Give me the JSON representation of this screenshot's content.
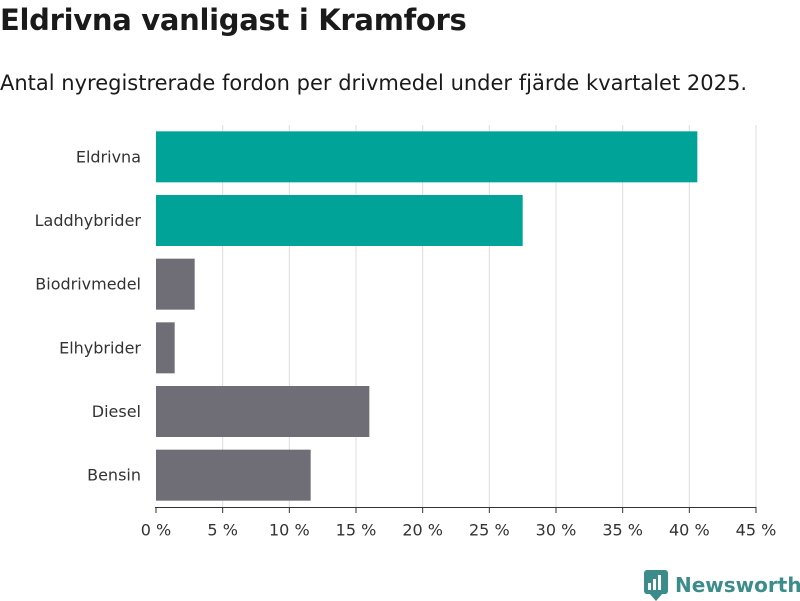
{
  "header": {
    "title": "Eldrivna vanligast i Kramfors",
    "subtitle": "Antal nyregistrerade fordon per drivmedel under fjärde kvartalet 2025."
  },
  "chart_data": {
    "type": "bar",
    "orientation": "horizontal",
    "categories": [
      "Eldrivna",
      "Laddhybrider",
      "Biodrivmedel",
      "Elhybrider",
      "Diesel",
      "Bensin"
    ],
    "values": [
      40.6,
      27.5,
      2.9,
      1.4,
      16.0,
      11.6
    ],
    "unit": "%",
    "highlighted": [
      "Eldrivna",
      "Laddhybrider"
    ],
    "xlim": [
      0,
      45
    ],
    "xticks": [
      0,
      5,
      10,
      15,
      20,
      25,
      30,
      35,
      40,
      45
    ],
    "xtick_labels": [
      "0 %",
      "5 %",
      "10 %",
      "15 %",
      "20 %",
      "25 %",
      "30 %",
      "35 %",
      "40 %",
      "45 %"
    ],
    "xlabel": "",
    "ylabel": "",
    "grid": true,
    "colors": {
      "highlight": "#00a398",
      "default": "#6f6e76",
      "grid": "#dcdcdc",
      "axis": "#333333"
    }
  },
  "branding": {
    "name": "Newsworthy",
    "logo_icon": "newsworthy-logo-icon",
    "color": "#3b8c8a"
  }
}
